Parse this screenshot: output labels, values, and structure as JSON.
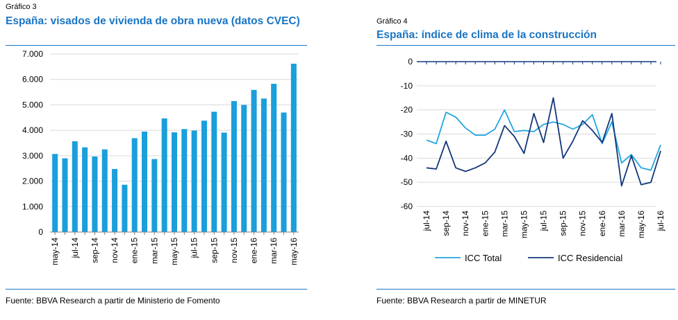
{
  "left": {
    "label": "Gráfico 3",
    "title": "España: visados de vivienda de obra nueva (datos CVEC)",
    "source": "Fuente: BBVA Research a partir de Ministerio de Fomento"
  },
  "right": {
    "label": "Gráfico 4",
    "title": "España: índice de clima de la construcción",
    "source": "Fuente: BBVA Research a partir de MINETUR"
  },
  "colors": {
    "accent": "#1a75c4",
    "bar": "#1a9fdb",
    "series_light": "#22a6e0",
    "series_dark": "#11367a",
    "grid": "#d9d9d9"
  },
  "chart_data": [
    {
      "type": "bar",
      "title": "España: visados de vivienda de obra nueva (datos CVEC)",
      "xlabel": "",
      "ylabel": "",
      "ylim": [
        0,
        7000
      ],
      "ytick_labels": [
        "0",
        "1.000",
        "2.000",
        "3.000",
        "4.000",
        "5.000",
        "6.000",
        "7.000"
      ],
      "categories": [
        "may-14",
        "jun-14",
        "jul-14",
        "ago-14",
        "sep-14",
        "oct-14",
        "nov-14",
        "dic-14",
        "ene-15",
        "feb-15",
        "mar-15",
        "abr-15",
        "may-15",
        "jun-15",
        "jul-15",
        "ago-15",
        "sep-15",
        "oct-15",
        "nov-15",
        "dic-15",
        "ene-16",
        "feb-16",
        "mar-16",
        "abr-16",
        "may-16"
      ],
      "xtick_labels": [
        "may-14",
        "jul-14",
        "sep-14",
        "nov-14",
        "ene-15",
        "mar-15",
        "may-15",
        "jul-15",
        "sep-15",
        "nov-15",
        "ene-16",
        "mar-16",
        "may-16"
      ],
      "values": [
        3070,
        2900,
        3570,
        3330,
        2970,
        3250,
        2480,
        1860,
        3690,
        3950,
        2870,
        4470,
        3920,
        4050,
        3990,
        4380,
        4730,
        3910,
        5150,
        5000,
        5590,
        5250,
        5830,
        4700,
        6620
      ]
    },
    {
      "type": "line",
      "title": "España: índice de clima de la construcción",
      "xlabel": "",
      "ylabel": "",
      "ylim": [
        -60,
        0
      ],
      "ytick_labels": [
        "0",
        "-10",
        "-20",
        "-30",
        "-40",
        "-50",
        "-60"
      ],
      "x": [
        "jul-14",
        "ago-14",
        "sep-14",
        "oct-14",
        "nov-14",
        "dic-14",
        "ene-15",
        "feb-15",
        "mar-15",
        "abr-15",
        "may-15",
        "jun-15",
        "jul-15",
        "ago-15",
        "sep-15",
        "oct-15",
        "nov-15",
        "dic-15",
        "ene-16",
        "feb-16",
        "mar-16",
        "abr-16",
        "may-16",
        "jun-16",
        "jul-16"
      ],
      "xtick_labels": [
        "jul-14",
        "sep-14",
        "nov-14",
        "ene-15",
        "mar-15",
        "may-15",
        "jul-15",
        "sep-15",
        "nov-15",
        "ene-16",
        "mar-16",
        "may-16",
        "jul-16"
      ],
      "legend": [
        "ICC Total",
        "ICC Residencial"
      ],
      "series": [
        {
          "name": "ICC Total",
          "values": [
            -32.5,
            -34,
            -21,
            -23,
            -27.5,
            -30.5,
            -30.5,
            -28,
            -20,
            -29,
            -28.5,
            -29,
            -26,
            -25,
            -26,
            -28,
            -26,
            -22,
            -34,
            -25,
            -42,
            -38.5,
            -44,
            -45,
            -34.5
          ]
        },
        {
          "name": "ICC Residencial",
          "values": [
            -44,
            -44.5,
            -33,
            -44,
            -45.5,
            -44,
            -42,
            -37.5,
            -26.5,
            -31,
            -38,
            -21.5,
            -33.5,
            -15,
            -40,
            -33,
            -24.5,
            -28.5,
            -33.5,
            -21.5,
            -51.5,
            -39,
            -51,
            -50,
            -37
          ]
        }
      ]
    }
  ]
}
